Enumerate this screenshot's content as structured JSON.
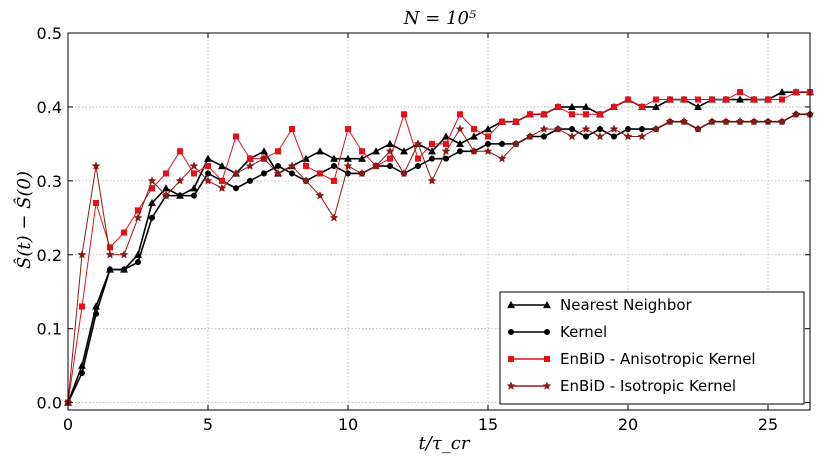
{
  "chart_data": {
    "type": "line",
    "title": "N = 10⁵",
    "xlabel": "t/τ_cr",
    "ylabel": "Ŝ(t) − Ŝ(0)",
    "xlim": [
      0,
      26.5
    ],
    "ylim": [
      -0.01,
      0.5
    ],
    "xticks": [
      "0",
      "5",
      "10",
      "15",
      "20",
      "25"
    ],
    "yticks": [
      "0.0",
      "0.1",
      "0.2",
      "0.3",
      "0.4",
      "0.5"
    ],
    "grid": true,
    "legend_position": "lower-right",
    "colors": {
      "black": "#000000",
      "red": "#e3101a",
      "darkred": "#8b1a1a"
    },
    "series": [
      {
        "name": "Nearest Neighbor",
        "marker": "triangle",
        "x": [
          0,
          0.5,
          1,
          1.5,
          2,
          2.5,
          3,
          3.5,
          4,
          4.5,
          5,
          5.5,
          6,
          6.5,
          7,
          7.5,
          8,
          8.5,
          9,
          9.5,
          10,
          10.5,
          11,
          11.5,
          12,
          12.5,
          13,
          13.5,
          14,
          14.5,
          15,
          15.5,
          16,
          16.5,
          17,
          17.5,
          18,
          18.5,
          19,
          19.5,
          20,
          20.5,
          21,
          21.5,
          22,
          22.5,
          23,
          23.5,
          24,
          24.5,
          25,
          25.5,
          26,
          26.5
        ],
        "values": [
          0,
          0.05,
          0.13,
          0.18,
          0.18,
          0.2,
          0.27,
          0.29,
          0.28,
          0.29,
          0.33,
          0.32,
          0.31,
          0.33,
          0.34,
          0.31,
          0.32,
          0.33,
          0.34,
          0.33,
          0.33,
          0.33,
          0.34,
          0.35,
          0.34,
          0.35,
          0.34,
          0.36,
          0.35,
          0.36,
          0.37,
          0.38,
          0.38,
          0.39,
          0.39,
          0.4,
          0.4,
          0.4,
          0.39,
          0.4,
          0.41,
          0.4,
          0.4,
          0.41,
          0.41,
          0.4,
          0.41,
          0.41,
          0.41,
          0.41,
          0.41,
          0.42,
          0.42,
          0.42
        ]
      },
      {
        "name": "Kernel",
        "marker": "circle",
        "x": [
          0,
          0.5,
          1,
          1.5,
          2,
          2.5,
          3,
          3.5,
          4,
          4.5,
          5,
          5.5,
          6,
          6.5,
          7,
          7.5,
          8,
          8.5,
          9,
          9.5,
          10,
          10.5,
          11,
          11.5,
          12,
          12.5,
          13,
          13.5,
          14,
          14.5,
          15,
          15.5,
          16,
          16.5,
          17,
          17.5,
          18,
          18.5,
          19,
          19.5,
          20,
          20.5,
          21,
          21.5,
          22,
          22.5,
          23,
          23.5,
          24,
          24.5,
          25,
          25.5,
          26,
          26.5
        ],
        "values": [
          0,
          0.04,
          0.12,
          0.18,
          0.18,
          0.19,
          0.25,
          0.28,
          0.28,
          0.28,
          0.31,
          0.3,
          0.29,
          0.3,
          0.31,
          0.32,
          0.31,
          0.3,
          0.31,
          0.32,
          0.31,
          0.31,
          0.32,
          0.32,
          0.31,
          0.32,
          0.33,
          0.33,
          0.34,
          0.34,
          0.35,
          0.35,
          0.35,
          0.36,
          0.36,
          0.37,
          0.37,
          0.36,
          0.37,
          0.36,
          0.37,
          0.37,
          0.37,
          0.38,
          0.38,
          0.37,
          0.38,
          0.38,
          0.38,
          0.38,
          0.38,
          0.38,
          0.39,
          0.39
        ]
      },
      {
        "name": "EnBiD - Anisotropic Kernel",
        "marker": "square",
        "x": [
          0,
          0.5,
          1,
          1.5,
          2,
          2.5,
          3,
          3.5,
          4,
          4.5,
          5,
          5.5,
          6,
          6.5,
          7,
          7.5,
          8,
          8.5,
          9,
          9.5,
          10,
          10.5,
          11,
          11.5,
          12,
          12.5,
          13,
          13.5,
          14,
          14.5,
          15,
          15.5,
          16,
          16.5,
          17,
          17.5,
          18,
          18.5,
          19,
          19.5,
          20,
          20.5,
          21,
          21.5,
          22,
          22.5,
          23,
          23.5,
          24,
          24.5,
          25,
          25.5,
          26,
          26.5
        ],
        "values": [
          0,
          0.13,
          0.27,
          0.21,
          0.23,
          0.26,
          0.29,
          0.31,
          0.34,
          0.31,
          0.32,
          0.3,
          0.36,
          0.33,
          0.33,
          0.34,
          0.37,
          0.32,
          0.31,
          0.3,
          0.37,
          0.34,
          0.32,
          0.33,
          0.39,
          0.33,
          0.35,
          0.35,
          0.39,
          0.37,
          0.36,
          0.38,
          0.38,
          0.39,
          0.39,
          0.4,
          0.39,
          0.39,
          0.39,
          0.4,
          0.41,
          0.4,
          0.41,
          0.41,
          0.41,
          0.41,
          0.41,
          0.41,
          0.42,
          0.41,
          0.41,
          0.41,
          0.42,
          0.42
        ]
      },
      {
        "name": "EnBiD - Isotropic Kernel",
        "marker": "star",
        "x": [
          0,
          0.5,
          1,
          1.5,
          2,
          2.5,
          3,
          3.5,
          4,
          4.5,
          5,
          5.5,
          6,
          6.5,
          7,
          7.5,
          8,
          8.5,
          9,
          9.5,
          10,
          10.5,
          11,
          11.5,
          12,
          12.5,
          13,
          13.5,
          14,
          14.5,
          15,
          15.5,
          16,
          16.5,
          17,
          17.5,
          18,
          18.5,
          19,
          19.5,
          20,
          20.5,
          21,
          21.5,
          22,
          22.5,
          23,
          23.5,
          24,
          24.5,
          25,
          25.5,
          26,
          26.5
        ],
        "values": [
          0,
          0.2,
          0.32,
          0.2,
          0.2,
          0.25,
          0.3,
          0.28,
          0.3,
          0.32,
          0.3,
          0.29,
          0.31,
          0.32,
          0.33,
          0.31,
          0.32,
          0.3,
          0.28,
          0.25,
          0.32,
          0.31,
          0.32,
          0.34,
          0.31,
          0.35,
          0.3,
          0.34,
          0.37,
          0.34,
          0.34,
          0.33,
          0.35,
          0.36,
          0.37,
          0.37,
          0.36,
          0.37,
          0.36,
          0.37,
          0.36,
          0.36,
          0.37,
          0.38,
          0.38,
          0.37,
          0.38,
          0.38,
          0.38,
          0.38,
          0.38,
          0.38,
          0.39,
          0.39
        ]
      }
    ]
  }
}
